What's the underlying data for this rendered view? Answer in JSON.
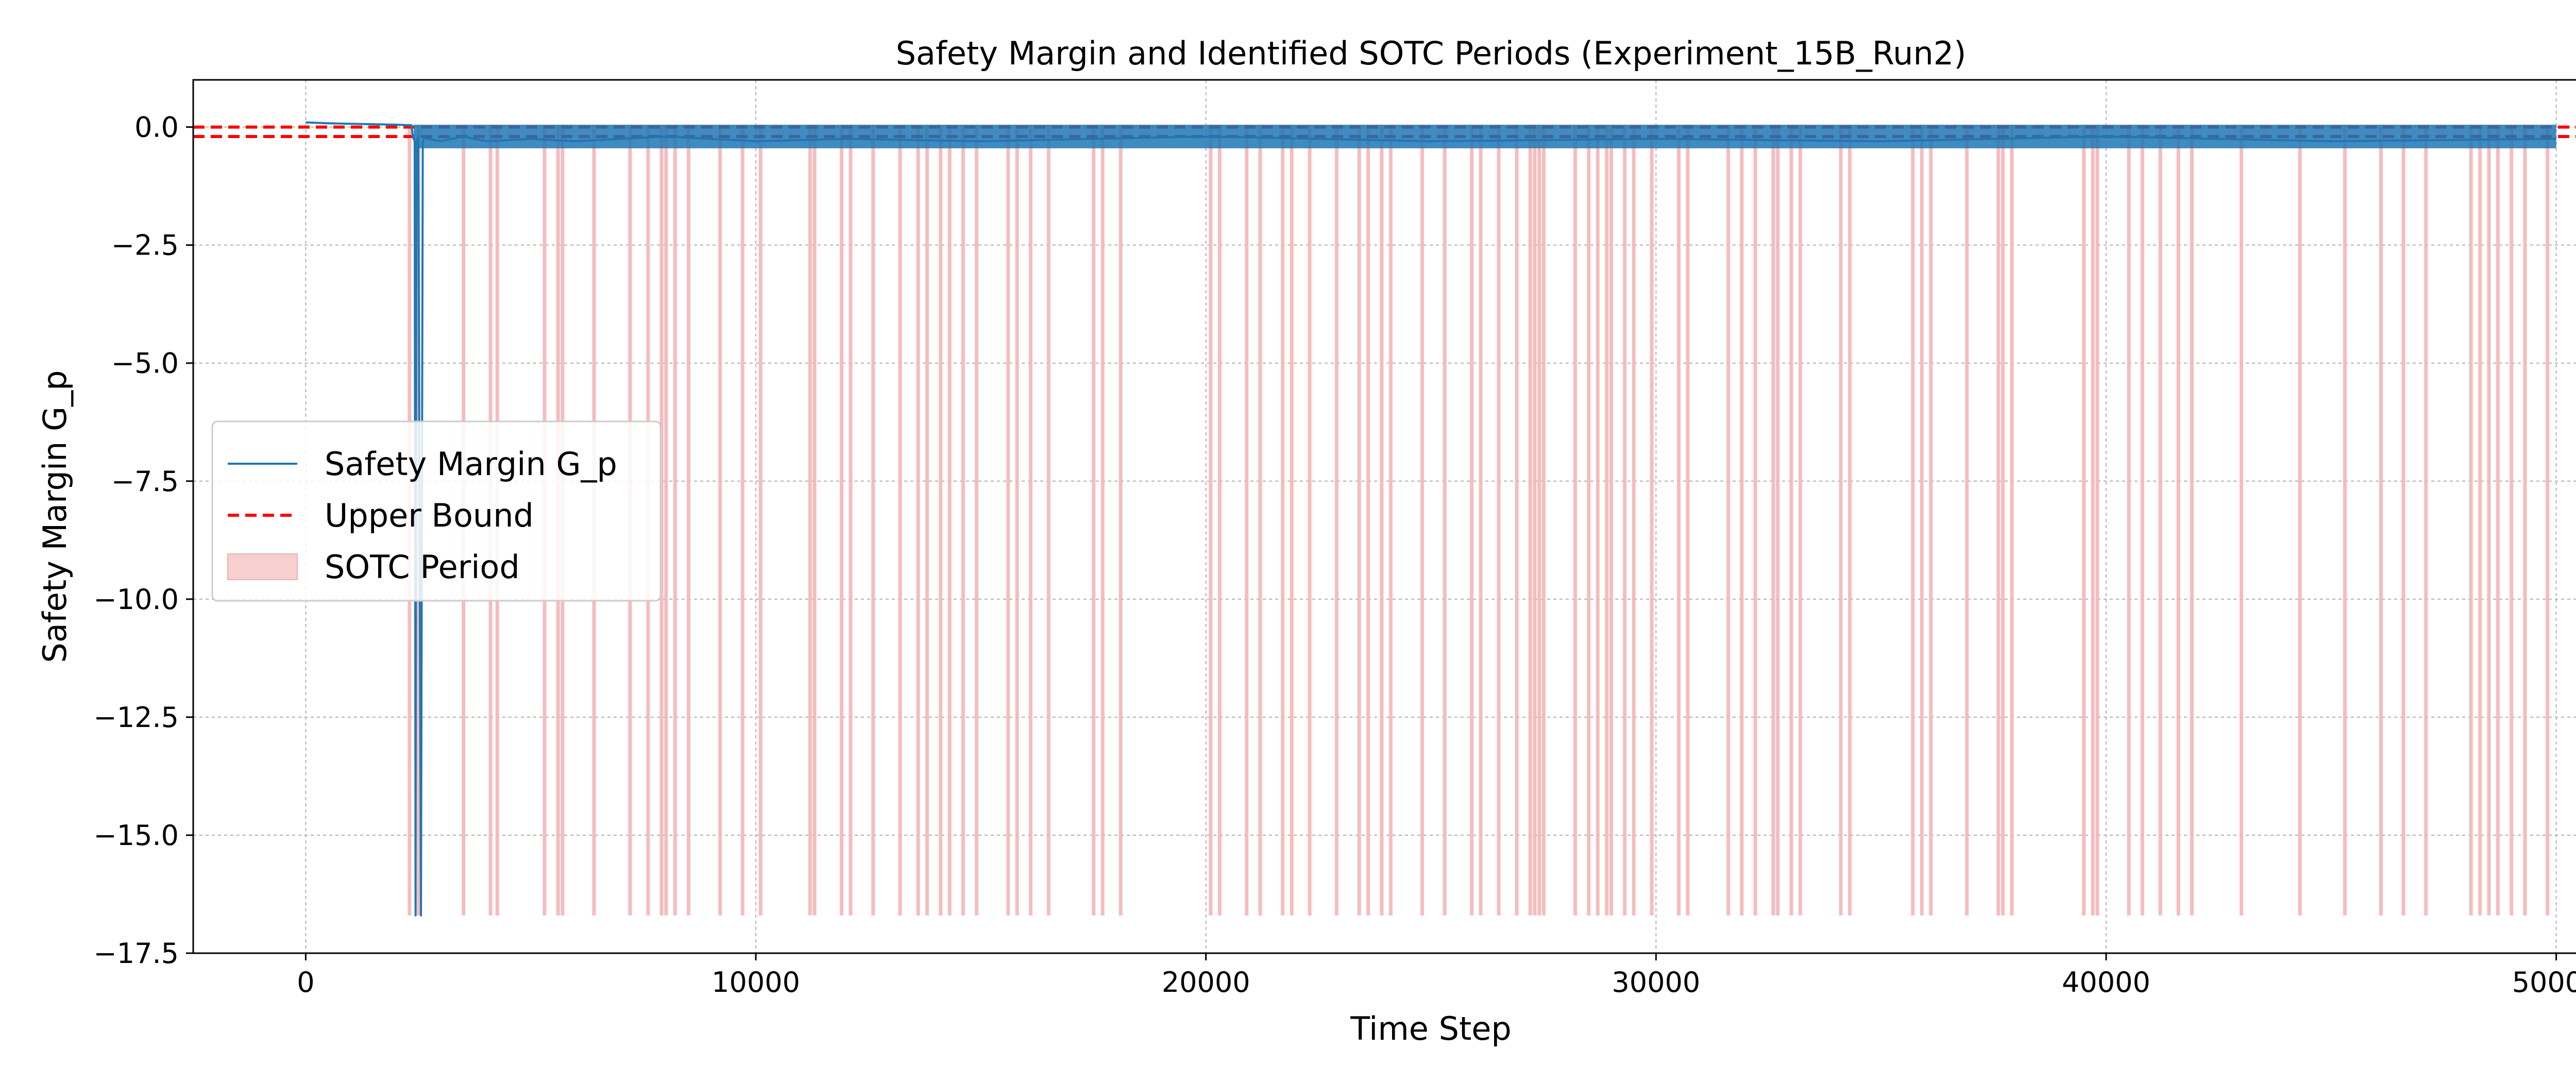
{
  "chart_data": {
    "type": "line",
    "title": "Safety Margin and Identified SOTC Periods (Experiment_15B_Run2)",
    "xlabel": "Time Step",
    "ylabel": "Safety Margin G_p",
    "xlim": [
      -2500,
      52500
    ],
    "ylim": [
      -17.5,
      1.0
    ],
    "xticks": [
      0,
      10000,
      20000,
      30000,
      40000,
      50000
    ],
    "xtick_labels": [
      "0",
      "10000",
      "20000",
      "30000",
      "40000",
      "50000"
    ],
    "yticks": [
      0.0,
      -2.5,
      -5.0,
      -7.5,
      -10.0,
      -12.5,
      -15.0,
      -17.5
    ],
    "ytick_labels": [
      "0.0",
      "−2.5",
      "−5.0",
      "−7.5",
      "−10.0",
      "−12.5",
      "−15.0",
      "−17.5"
    ],
    "grid": true,
    "legend_position": "center-left",
    "legend": [
      {
        "label": "Safety Margin G_p",
        "style": "line",
        "color": "#1f77b4"
      },
      {
        "label": "Upper Bound",
        "style": "dashed",
        "color": "#ff0000"
      },
      {
        "label": "SOTC Period",
        "style": "patch",
        "color": "#f4b6b6"
      }
    ],
    "upper_bounds": [
      0.0,
      -0.2
    ],
    "series": [
      {
        "name": "Safety Margin G_p",
        "color": "#1f77b4",
        "x": [
          0,
          500,
          1000,
          1500,
          2000,
          2350,
          2380,
          2420,
          2440,
          2460,
          2500,
          2560,
          2600,
          2640,
          2700,
          3000,
          3500,
          4000,
          5000,
          6000,
          8000,
          10000,
          12000,
          15000,
          20000,
          25000,
          30000,
          35000,
          40000,
          45000,
          50000
        ],
        "y": [
          0.1,
          0.08,
          0.07,
          0.06,
          0.05,
          0.04,
          -0.2,
          -0.3,
          -16.7,
          -0.3,
          -0.2,
          -16.7,
          -0.3,
          -0.2,
          -0.25,
          -0.3,
          -0.2,
          -0.3,
          -0.25,
          -0.3,
          -0.2,
          -0.3,
          -0.25,
          -0.3,
          -0.2,
          -0.3,
          -0.25,
          -0.3,
          -0.2,
          -0.3,
          -0.25
        ],
        "band_min": -0.45,
        "band_max": 0.05,
        "band_range": [
          2400,
          50000
        ]
      }
    ],
    "sotc_periods": [
      2300,
      2500,
      3500,
      4100,
      4250,
      5300,
      5600,
      5700,
      6400,
      7200,
      7600,
      7900,
      8000,
      8200,
      8500,
      9200,
      9700,
      10100,
      11200,
      11300,
      11900,
      12100,
      12600,
      13200,
      13600,
      13800,
      14100,
      14300,
      14600,
      14900,
      15600,
      15800,
      16100,
      16500,
      17500,
      17700,
      18100,
      20100,
      20300,
      20900,
      21200,
      21700,
      21900,
      22300,
      22900,
      23400,
      23600,
      23900,
      24100,
      24800,
      25300,
      25900,
      26100,
      26500,
      26900,
      27200,
      27300,
      27400,
      27500,
      28200,
      28500,
      28700,
      28900,
      29000,
      29300,
      29500,
      29900,
      30500,
      30700,
      31600,
      31900,
      32200,
      32600,
      32700,
      33000,
      33200,
      34100,
      34300,
      35700,
      35900,
      36100,
      36900,
      37600,
      37700,
      37900,
      39500,
      39700,
      39800,
      40500,
      40800,
      41200,
      41600,
      41900,
      43000,
      44300,
      45300,
      46100,
      46600,
      47100,
      48100,
      48300,
      48500,
      48700,
      49000,
      49300,
      49800
    ],
    "sotc_bottom": -16.7
  }
}
